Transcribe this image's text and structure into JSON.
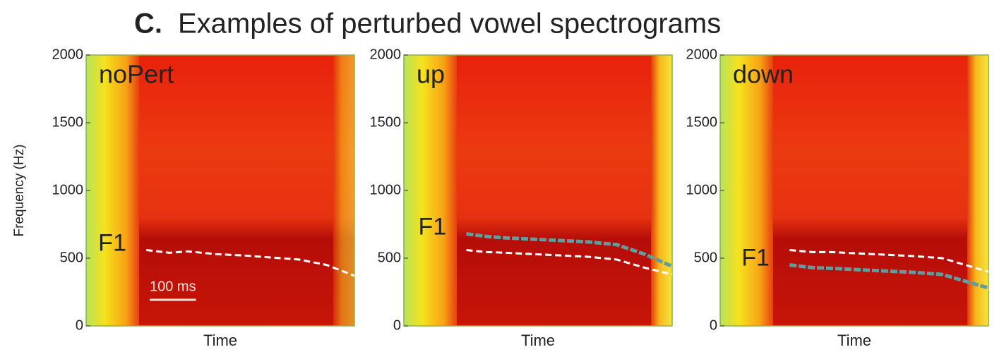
{
  "title_label": "C.",
  "title": "Examples of perturbed vowel spectrograms",
  "chart_data": [
    {
      "type": "spectrogram",
      "label": "noPert",
      "ylabel": "Frequency (Hz)",
      "xlabel": "Time",
      "annotation": "F1",
      "xlim": [
        0,
        580
      ],
      "ylim": [
        0,
        2000
      ],
      "yticks": [
        0,
        500,
        1000,
        1500,
        2000
      ],
      "scalebar": {
        "value": 100,
        "label": "100 ms"
      },
      "x": [
        130,
        180,
        220,
        280,
        340,
        400,
        460,
        520,
        580
      ],
      "series": [
        {
          "color": "#ffffff",
          "values": [
            560,
            540,
            550,
            530,
            520,
            505,
            490,
            450,
            370
          ]
        }
      ]
    },
    {
      "type": "spectrogram",
      "label": "up",
      "xlabel": "Time",
      "annotation": "F1",
      "xlim": [
        0,
        580
      ],
      "ylim": [
        0,
        2000
      ],
      "yticks": [
        0,
        500,
        1000,
        1500,
        2000
      ],
      "x": [
        135,
        180,
        220,
        280,
        340,
        400,
        460,
        520,
        580
      ],
      "series": [
        {
          "color": "#ffffff",
          "values": [
            560,
            545,
            540,
            530,
            520,
            510,
            490,
            430,
            380
          ]
        },
        {
          "color": "#5f9ea0",
          "values": [
            680,
            660,
            650,
            640,
            630,
            620,
            600,
            530,
            440
          ]
        }
      ]
    },
    {
      "type": "spectrogram",
      "label": "down",
      "xlabel": "Time",
      "annotation": "F1",
      "xlim": [
        0,
        580
      ],
      "ylim": [
        0,
        2000
      ],
      "yticks": [
        0,
        500,
        1000,
        1500,
        2000
      ],
      "x": [
        150,
        200,
        240,
        300,
        360,
        420,
        480,
        540,
        580
      ],
      "series": [
        {
          "color": "#ffffff",
          "values": [
            560,
            545,
            545,
            535,
            525,
            515,
            500,
            440,
            400
          ]
        },
        {
          "color": "#5f9ea0",
          "values": [
            450,
            430,
            425,
            415,
            405,
            395,
            380,
            320,
            280
          ]
        }
      ]
    }
  ]
}
